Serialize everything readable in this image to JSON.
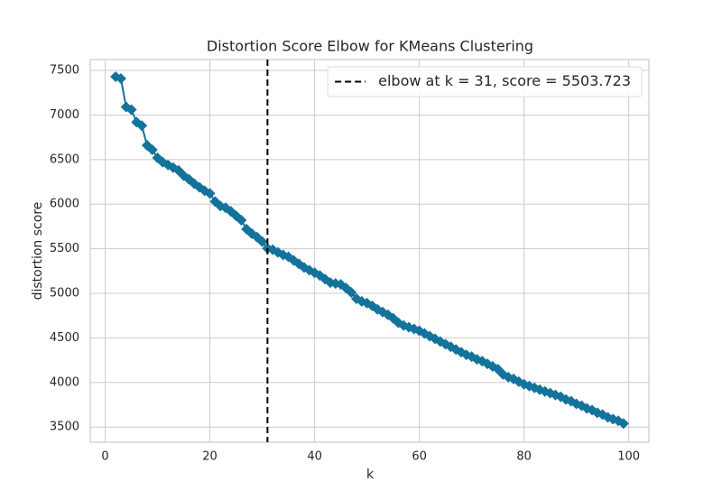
{
  "chart_data": {
    "type": "line",
    "title": "Distortion Score Elbow for KMeans Clustering",
    "xlabel": "k",
    "ylabel": "distortion score",
    "x": [
      2,
      3,
      4,
      5,
      6,
      7,
      8,
      9,
      10,
      11,
      12,
      13,
      14,
      15,
      16,
      17,
      18,
      19,
      20,
      21,
      22,
      23,
      24,
      25,
      26,
      27,
      28,
      29,
      30,
      31,
      32,
      33,
      34,
      35,
      36,
      37,
      38,
      39,
      40,
      41,
      42,
      43,
      44,
      45,
      46,
      47,
      48,
      49,
      50,
      51,
      52,
      53,
      54,
      55,
      56,
      57,
      58,
      59,
      60,
      61,
      62,
      63,
      64,
      65,
      66,
      67,
      68,
      69,
      70,
      71,
      72,
      73,
      74,
      75,
      76,
      77,
      78,
      79,
      80,
      81,
      82,
      83,
      84,
      85,
      86,
      87,
      88,
      89,
      90,
      91,
      92,
      93,
      94,
      95,
      96,
      97,
      98,
      99
    ],
    "series": [
      {
        "color": "#13739b",
        "values": [
          7430,
          7410,
          7090,
          7060,
          6920,
          6880,
          6660,
          6610,
          6520,
          6470,
          6440,
          6410,
          6380,
          6320,
          6280,
          6230,
          6190,
          6150,
          6120,
          6030,
          5980,
          5960,
          5920,
          5870,
          5820,
          5720,
          5670,
          5630,
          5580,
          5503.723,
          5490,
          5460,
          5430,
          5410,
          5370,
          5330,
          5290,
          5260,
          5230,
          5200,
          5160,
          5120,
          5110,
          5100,
          5060,
          5010,
          4940,
          4910,
          4890,
          4860,
          4820,
          4790,
          4760,
          4720,
          4670,
          4640,
          4620,
          4600,
          4580,
          4550,
          4520,
          4490,
          4460,
          4430,
          4400,
          4370,
          4340,
          4310,
          4290,
          4260,
          4240,
          4210,
          4180,
          4150,
          4090,
          4060,
          4040,
          4010,
          3980,
          3960,
          3940,
          3920,
          3900,
          3880,
          3860,
          3840,
          3810,
          3790,
          3760,
          3740,
          3710,
          3690,
          3660,
          3640,
          3610,
          3590,
          3570,
          3540
        ]
      }
    ],
    "elbow": {
      "x": 31,
      "label": "elbow at k = 31, score = 5503.723",
      "color": "#000000"
    },
    "xlim": [
      -2.85,
      103.85
    ],
    "ylim": [
      3330,
      7622
    ],
    "xticks": [
      0,
      20,
      40,
      60,
      80,
      100
    ],
    "yticks": [
      3500,
      4000,
      4500,
      5000,
      5500,
      6000,
      6500,
      7000,
      7500
    ],
    "grid": true,
    "legend": "upper right"
  }
}
